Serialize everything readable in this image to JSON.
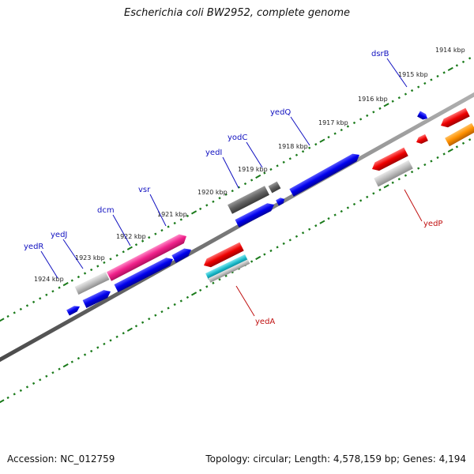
{
  "title": "Escherichia coli BW2952, complete genome",
  "footer": {
    "accession": "Accession: NC_012759",
    "topology": "Topology: circular; Length: 4,578,159 bp; Genes: 4,194"
  },
  "colors": {
    "backbone": "#7a7a7a",
    "tick": "#1a7a1a",
    "forward_label": "#1010c0",
    "reverse_label": "#c01010"
  },
  "scale_labels": [
    "1914 kbp",
    "1915 kbp",
    "1916 kbp",
    "1917 kbp",
    "1918 kbp",
    "1919 kbp",
    "1920 kbp",
    "1921 kbp",
    "1922 kbp",
    "1923 kbp",
    "1924 kbp"
  ],
  "features": [
    {
      "name": "dsrB",
      "strand": "forward",
      "color": "#0000ee"
    },
    {
      "name": "yedQ",
      "strand": "forward",
      "color": "#0000ee"
    },
    {
      "name": "yodC",
      "strand": "forward",
      "color": "#0000ee"
    },
    {
      "name": "yedI",
      "strand": "forward",
      "color": "#0000ee"
    },
    {
      "name": "vsr",
      "strand": "forward",
      "color": "#0000ee"
    },
    {
      "name": "dcm",
      "strand": "forward",
      "color": "#0000ee"
    },
    {
      "name": "yedJ",
      "strand": "forward",
      "color": "#0000ee"
    },
    {
      "name": "yedR",
      "strand": "forward",
      "color": "#0000ee"
    },
    {
      "name": "yedP",
      "strand": "reverse",
      "color": "#ee0000"
    },
    {
      "name": "yedA",
      "strand": "reverse",
      "color": "#ee0000"
    }
  ]
}
